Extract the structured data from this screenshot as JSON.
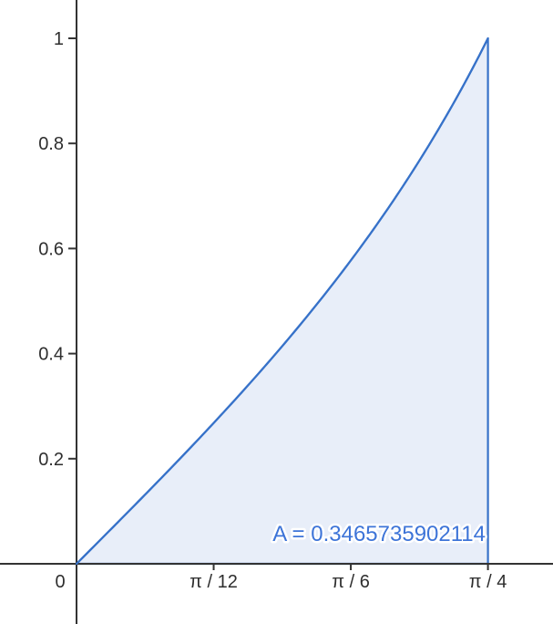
{
  "chart_data": {
    "type": "area",
    "title": "",
    "function": "y = tan(x)",
    "x_range": [
      0,
      0.7853981633974483
    ],
    "y_range": [
      0,
      1
    ],
    "grid": false,
    "legend": false,
    "origin_label": "0",
    "x_ticks": [
      {
        "value": 0.2617993877991494,
        "label": "π / 12"
      },
      {
        "value": 0.5235987755982988,
        "label": "π / 6"
      },
      {
        "value": 0.7853981633974483,
        "label": "π / 4"
      }
    ],
    "y_ticks": [
      {
        "value": 0.2,
        "label": "0.2"
      },
      {
        "value": 0.4,
        "label": "0.4"
      },
      {
        "value": 0.6,
        "label": "0.6"
      },
      {
        "value": 0.8,
        "label": "0.8"
      },
      {
        "value": 1,
        "label": "1"
      }
    ],
    "area_label": "A = 0.3465735902114",
    "area_value": 0.3465735902114,
    "colors": {
      "curve": "#3772c9",
      "fill": "#e8eef9",
      "area_label": "#3d74d8",
      "axis": "#333333",
      "tick_label": "#2e2e2e",
      "background": "#ffffff"
    }
  }
}
